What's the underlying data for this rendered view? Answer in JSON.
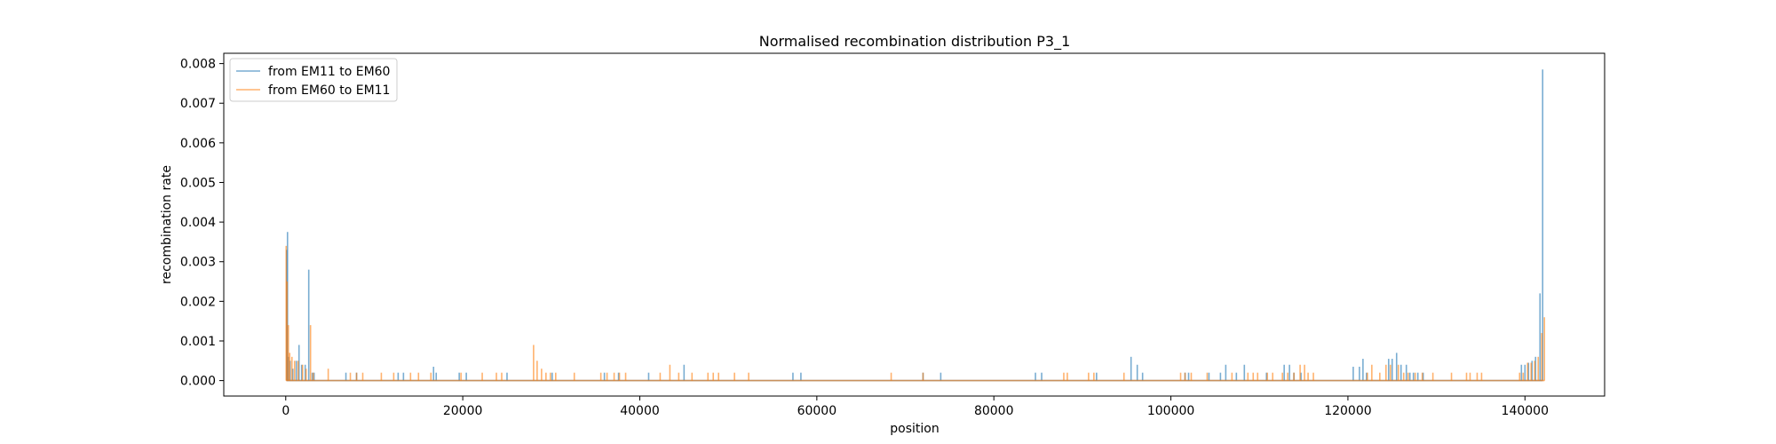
{
  "chart_data": {
    "type": "line",
    "title": "Normalised recombination distribution P3_1",
    "xlabel": "position",
    "ylabel": "recombination rate",
    "xlim": [
      -7000,
      149000
    ],
    "ylim": [
      -0.00039,
      0.00826
    ],
    "x_ticks": [
      0,
      20000,
      40000,
      60000,
      80000,
      100000,
      120000,
      140000
    ],
    "x_tick_labels": [
      "0",
      "20000",
      "40000",
      "60000",
      "80000",
      "100000",
      "120000",
      "140000"
    ],
    "y_ticks": [
      0,
      0.001,
      0.002,
      0.003,
      0.004,
      0.005,
      0.006,
      0.007,
      0.008
    ],
    "y_tick_labels": [
      "0.000",
      "0.001",
      "0.002",
      "0.003",
      "0.004",
      "0.005",
      "0.006",
      "0.007",
      "0.008"
    ],
    "grid": false,
    "legend_position": "top-left",
    "series": [
      {
        "name": "from EM11 to EM60",
        "color": "#1f77b4",
        "x": [
          100,
          200,
          300,
          500,
          800,
          1200,
          1500,
          1800,
          2200,
          2600,
          3000,
          3200,
          6800,
          8000,
          12700,
          13300,
          16700,
          17000,
          19600,
          20400,
          25000,
          30100,
          36000,
          37600,
          41000,
          45000,
          57300,
          58200,
          72000,
          74000,
          84700,
          85400,
          91600,
          95500,
          96200,
          96800,
          101600,
          102000,
          104300,
          105600,
          106200,
          107400,
          108300,
          110800,
          112800,
          113400,
          113900,
          114700,
          120600,
          121300,
          121700,
          122100,
          124600,
          125000,
          125500,
          126000,
          126600,
          127000,
          127400,
          127900,
          128500,
          139600,
          140000,
          140400,
          140800,
          141200,
          141700,
          142000
        ],
        "y": [
          0.0033,
          0.00375,
          0.0006,
          0.0005,
          0.0003,
          0.0005,
          0.0009,
          0.0004,
          0.0004,
          0.0028,
          0.0002,
          0.0002,
          0.0002,
          0.0002,
          0.0002,
          0.0002,
          0.00035,
          0.0002,
          0.0002,
          0.0002,
          0.0002,
          0.0002,
          0.0002,
          0.0002,
          0.0002,
          0.0004,
          0.0002,
          0.0002,
          0.0002,
          0.0002,
          0.0002,
          0.0002,
          0.0002,
          0.0006,
          0.0004,
          0.0002,
          0.0002,
          0.0002,
          0.0002,
          0.0002,
          0.0004,
          0.0002,
          0.0004,
          0.0002,
          0.0004,
          0.0004,
          0.0002,
          0.0002,
          0.00035,
          0.00035,
          0.00055,
          0.0002,
          0.00055,
          0.00055,
          0.0007,
          0.0004,
          0.0004,
          0.0002,
          0.0002,
          0.0002,
          0.0002,
          0.0004,
          0.0004,
          0.00045,
          0.0005,
          0.0006,
          0.0022,
          0.00785
        ]
      },
      {
        "name": "from EM60 to EM11",
        "color": "#ff7f0e",
        "x": [
          50,
          150,
          300,
          450,
          700,
          1000,
          1400,
          1900,
          2300,
          2800,
          3100,
          4800,
          7300,
          8000,
          8700,
          10800,
          12200,
          14100,
          15000,
          16400,
          19800,
          22200,
          23800,
          24400,
          28000,
          28400,
          28900,
          29400,
          29900,
          30500,
          32600,
          35600,
          36300,
          37100,
          37700,
          38400,
          42300,
          43400,
          44400,
          45900,
          47700,
          48300,
          48900,
          50700,
          52300,
          68400,
          72000,
          87900,
          88300,
          90700,
          91300,
          94700,
          101100,
          101600,
          102300,
          104100,
          106900,
          108700,
          109300,
          109800,
          110900,
          111500,
          112600,
          113200,
          113900,
          114600,
          115100,
          115500,
          116100,
          122200,
          122700,
          123600,
          124300,
          124800,
          125700,
          126300,
          126800,
          127600,
          128400,
          129600,
          131700,
          133400,
          133800,
          134600,
          135100,
          139400,
          139800,
          140300,
          140700,
          141100,
          141500,
          141900,
          142200
        ],
        "y": [
          0.0034,
          0.0025,
          0.0014,
          0.0007,
          0.0006,
          0.0005,
          0.0005,
          0.0004,
          0.0003,
          0.0014,
          0.0002,
          0.0003,
          0.0002,
          0.0002,
          0.0002,
          0.0002,
          0.0002,
          0.0002,
          0.0002,
          0.0002,
          0.0002,
          0.0002,
          0.0002,
          0.0002,
          0.0009,
          0.0005,
          0.0003,
          0.0002,
          0.0002,
          0.0002,
          0.0002,
          0.0002,
          0.0002,
          0.0002,
          0.0002,
          0.0002,
          0.0002,
          0.0004,
          0.0002,
          0.0002,
          0.0002,
          0.0002,
          0.0002,
          0.0002,
          0.0002,
          0.0002,
          0.0002,
          0.0002,
          0.0002,
          0.0002,
          0.0002,
          0.0002,
          0.0002,
          0.0002,
          0.0002,
          0.0002,
          0.0002,
          0.0002,
          0.0002,
          0.0002,
          0.0002,
          0.0002,
          0.0002,
          0.0002,
          0.0002,
          0.0004,
          0.0004,
          0.0002,
          0.0002,
          0.0002,
          0.0004,
          0.0002,
          0.0004,
          0.0004,
          0.0004,
          0.0002,
          0.0002,
          0.0002,
          0.0002,
          0.0002,
          0.0002,
          0.0002,
          0.0002,
          0.0002,
          0.0002,
          0.0002,
          0.0002,
          0.00045,
          0.00045,
          0.0005,
          0.0006,
          0.0012,
          0.0016
        ]
      }
    ]
  }
}
